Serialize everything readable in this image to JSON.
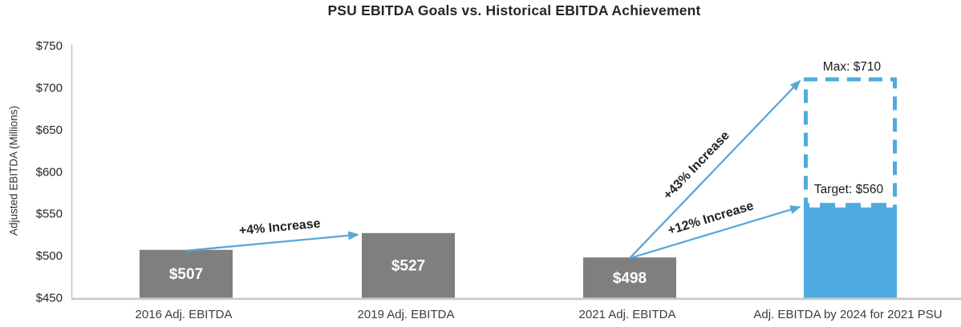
{
  "chart_data": {
    "type": "bar",
    "title": "PSU EBITDA Goals vs. Historical EBITDA Achievement",
    "ylabel": "Adjusted EBITDA (Millions)",
    "ylim": [
      450,
      750
    ],
    "yticks": [
      450,
      500,
      550,
      600,
      650,
      700,
      750
    ],
    "ytick_labels": [
      "$450",
      "$500",
      "$550",
      "$600",
      "$650",
      "$700",
      "$750"
    ],
    "grid": false,
    "legend": false,
    "categories": [
      "2016 Adj. EBITDA",
      "2019 Adj. EBITDA",
      "2021 Adj. EBITDA",
      "Adj. EBITDA by 2024 for 2021 PSU"
    ],
    "bars": [
      {
        "category": "2016 Adj. EBITDA",
        "value": 507,
        "label": "$507",
        "style": "solid-gray"
      },
      {
        "category": "2019 Adj. EBITDA",
        "value": 527,
        "label": "$527",
        "style": "solid-gray"
      },
      {
        "category": "2021 Adj. EBITDA",
        "value": 498,
        "label": "$498",
        "style": "solid-gray"
      },
      {
        "category": "Adj. EBITDA by 2024 for 2021 PSU",
        "style": "dashed-outline-blue",
        "target_value": 560,
        "max_value": 710,
        "target_label": "Target: $560",
        "max_label": "Max: $710"
      }
    ],
    "annotations": [
      {
        "label": "+4% Increase",
        "from_bar": 0,
        "to_bar": 1,
        "to_level": 527
      },
      {
        "label": "+43% Increase",
        "from_bar": 2,
        "to_bar": 3,
        "to_level": 710
      },
      {
        "label": "+12% Increase",
        "from_bar": 2,
        "to_bar": 3,
        "to_level": 560
      }
    ],
    "colors": {
      "gray_bar": "#7f7f7f",
      "blue_bar": "#4fabdf",
      "dashed_outline": "#4fabdf",
      "arrow": "#58a7d9",
      "axis_line": "#c9c9c9",
      "title_text": "#262626",
      "bar_value_text": "#ffffff"
    }
  }
}
